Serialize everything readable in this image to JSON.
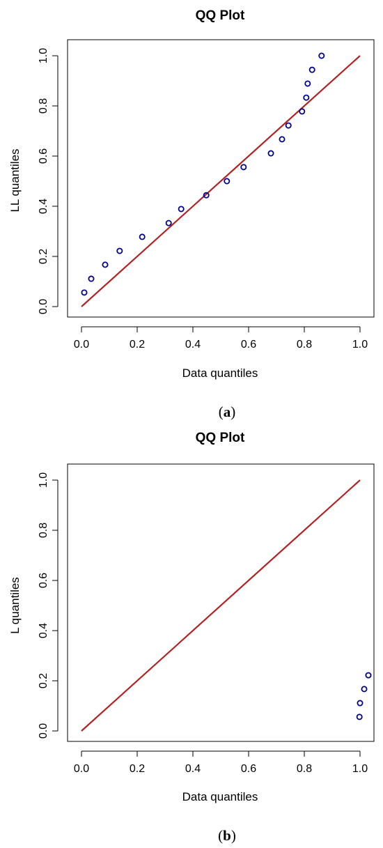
{
  "chart_data": [
    {
      "type": "scatter",
      "title": "QQ Plot",
      "xlabel": "Data quantiles",
      "ylabel": "LL quantiles",
      "caption_open": "(",
      "caption_letter": "a",
      "caption_close": ")",
      "xlim": [
        0.0,
        1.0
      ],
      "ylim": [
        0.0,
        1.0
      ],
      "xticks": [
        "0.0",
        "0.2",
        "0.4",
        "0.6",
        "0.8",
        "1.0"
      ],
      "yticks": [
        "0.0",
        "0.2",
        "0.4",
        "0.6",
        "0.8",
        "1.0"
      ],
      "grid": false,
      "point_color": "#00008b",
      "line_color": "#b22222",
      "reference_line": {
        "x": [
          0.0,
          1.0
        ],
        "y": [
          0.0,
          1.0
        ]
      },
      "points": {
        "x": [
          0.01,
          0.035,
          0.085,
          0.137,
          0.218,
          0.313,
          0.358,
          0.448,
          0.522,
          0.582,
          0.68,
          0.72,
          0.743,
          0.792,
          0.807,
          0.812,
          0.828,
          0.862
        ],
        "y": [
          0.056,
          0.111,
          0.167,
          0.222,
          0.278,
          0.333,
          0.389,
          0.444,
          0.5,
          0.556,
          0.611,
          0.667,
          0.722,
          0.778,
          0.833,
          0.889,
          0.944,
          1.0
        ]
      }
    },
    {
      "type": "scatter",
      "title": "QQ Plot",
      "xlabel": "Data quantiles",
      "ylabel": "L quantiles",
      "caption_open": "(",
      "caption_letter": "b",
      "caption_close": ")",
      "xlim": [
        0.0,
        1.0
      ],
      "ylim": [
        0.0,
        1.0
      ],
      "xticks": [
        "0.0",
        "0.2",
        "0.4",
        "0.6",
        "0.8",
        "1.0"
      ],
      "yticks": [
        "0.0",
        "0.2",
        "0.4",
        "0.6",
        "0.8",
        "1.0"
      ],
      "grid": false,
      "point_color": "#00008b",
      "line_color": "#b22222",
      "reference_line": {
        "x": [
          0.0,
          1.0
        ],
        "y": [
          0.0,
          1.0
        ]
      },
      "points": {
        "x": [
          0.998,
          1.0,
          1.015,
          1.03
        ],
        "y": [
          0.056,
          0.111,
          0.167,
          0.222
        ]
      }
    }
  ]
}
